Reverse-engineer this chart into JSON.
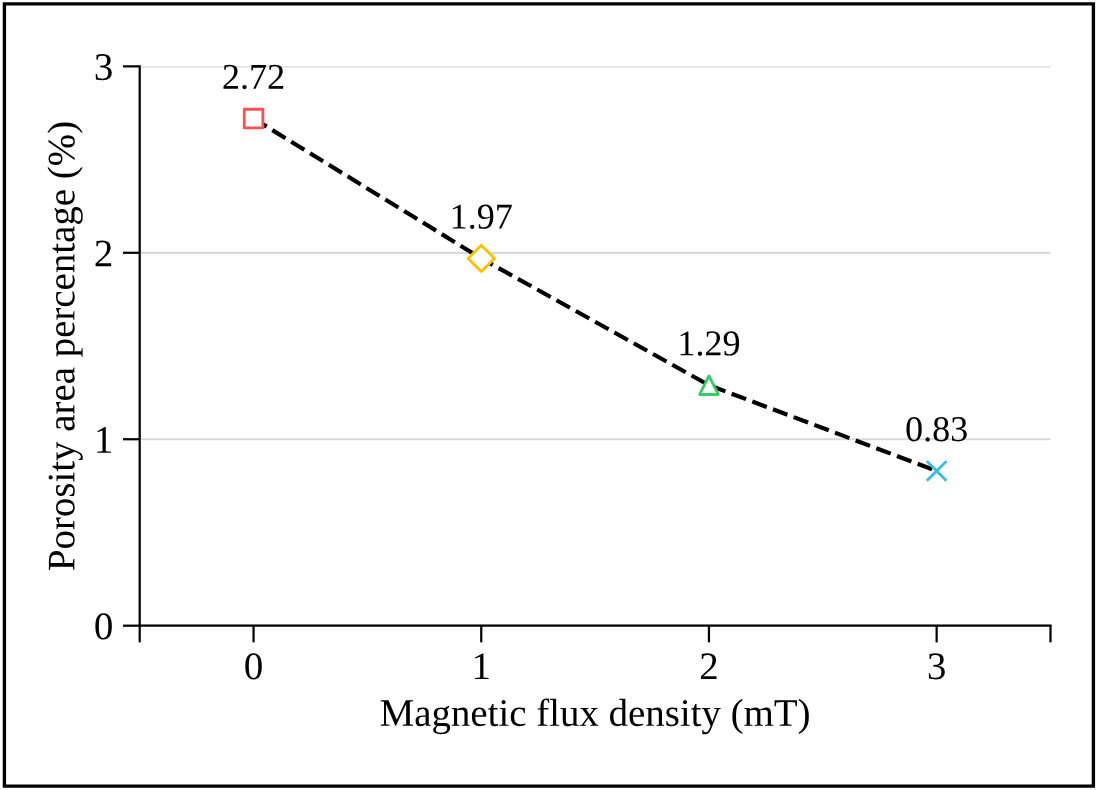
{
  "chart_data": {
    "type": "line",
    "xlabel": "Magnetic flux density (mT)",
    "ylabel": "Porosity area percentage (%)",
    "xlim": [
      -0.5,
      3.5
    ],
    "xticks": [
      {
        "value": -0.5,
        "label": null
      },
      0,
      1,
      2,
      3,
      {
        "value": 3.5,
        "label": null
      }
    ],
    "ylim": [
      0,
      3
    ],
    "yticks": [
      0,
      1,
      2,
      3
    ],
    "grid": "y",
    "series": [
      {
        "x": [
          0,
          1,
          2,
          3
        ],
        "values": [
          2.72,
          1.97,
          1.29,
          0.83
        ],
        "color": "#000000",
        "line_style": "dashed",
        "marker": "none"
      },
      {
        "type": "scatter",
        "x": [
          0
        ],
        "values": [
          2.72
        ],
        "value_labels": [
          "2.72"
        ],
        "color": "#ff5050",
        "marker": "square"
      },
      {
        "type": "scatter",
        "x": [
          1
        ],
        "values": [
          1.97
        ],
        "value_labels": [
          "1.97"
        ],
        "color": "#ffc000",
        "marker": "diamond"
      },
      {
        "type": "scatter",
        "x": [
          2
        ],
        "values": [
          1.29
        ],
        "value_labels": [
          "1.29"
        ],
        "color": "#33cc66",
        "marker": "triangle"
      },
      {
        "type": "scatter",
        "x": [
          3
        ],
        "values": [
          0.83
        ],
        "value_labels": [
          "0.83"
        ],
        "color": "#33bbee",
        "marker": "cross"
      }
    ]
  }
}
